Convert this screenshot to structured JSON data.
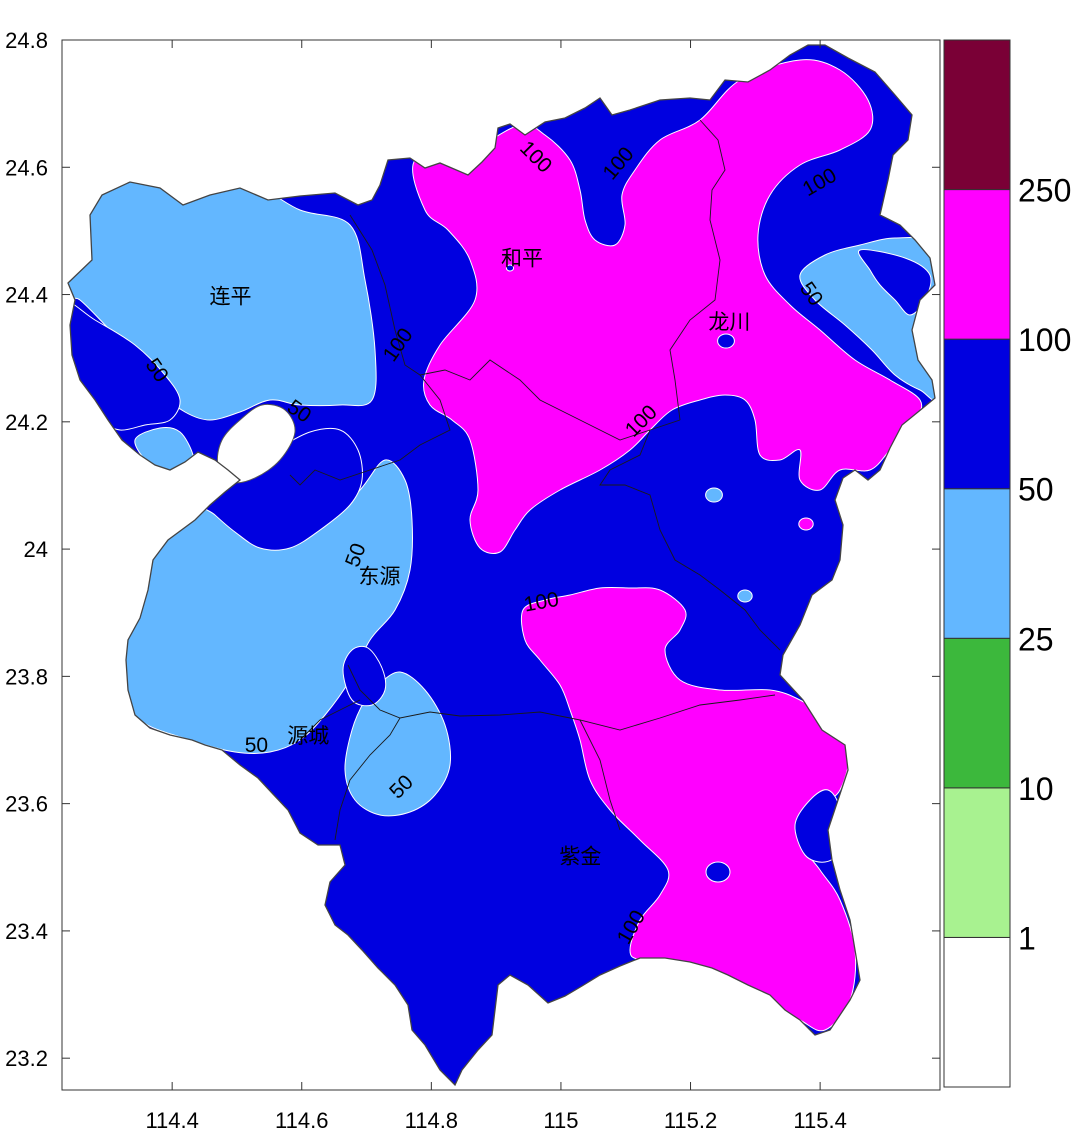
{
  "map": {
    "x_ticks": [
      {
        "value": 114.4,
        "label": "114.4"
      },
      {
        "value": 114.6,
        "label": "114.6"
      },
      {
        "value": 114.8,
        "label": "114.8"
      },
      {
        "value": 115.0,
        "label": "115"
      },
      {
        "value": 115.2,
        "label": "115.2"
      },
      {
        "value": 115.4,
        "label": "115.4"
      }
    ],
    "y_ticks": [
      {
        "value": 24.8,
        "label": "24.8"
      },
      {
        "value": 24.6,
        "label": "24.6"
      },
      {
        "value": 24.4,
        "label": "24.4"
      },
      {
        "value": 24.2,
        "label": "24.2"
      },
      {
        "value": 24.0,
        "label": "24"
      },
      {
        "value": 23.8,
        "label": "23.8"
      },
      {
        "value": 23.6,
        "label": "23.6"
      },
      {
        "value": 23.4,
        "label": "23.4"
      },
      {
        "value": 23.2,
        "label": "23.2"
      }
    ],
    "lon_range": [
      114.23,
      115.585
    ],
    "lat_range": [
      23.15,
      24.8
    ],
    "places": [
      {
        "name": "连平",
        "lon": 114.49,
        "lat": 24.395
      },
      {
        "name": "和平",
        "lon": 114.94,
        "lat": 24.455
      },
      {
        "name": "龙川",
        "lon": 115.26,
        "lat": 24.355
      },
      {
        "name": "东源",
        "lon": 114.72,
        "lat": 23.955
      },
      {
        "name": "源城",
        "lon": 114.61,
        "lat": 23.705
      },
      {
        "name": "紫金",
        "lon": 115.03,
        "lat": 23.515
      }
    ],
    "contour_labels": [
      {
        "text": "100",
        "lon": 114.96,
        "lat": 24.615,
        "angle": 45
      },
      {
        "text": "100",
        "lon": 115.09,
        "lat": 24.605,
        "angle": -50
      },
      {
        "text": "100",
        "lon": 115.4,
        "lat": 24.575,
        "angle": -30
      },
      {
        "text": "50",
        "lon": 115.385,
        "lat": 24.4,
        "angle": 55
      },
      {
        "text": "100",
        "lon": 114.75,
        "lat": 24.32,
        "angle": -55
      },
      {
        "text": "50",
        "lon": 114.375,
        "lat": 24.28,
        "angle": 55
      },
      {
        "text": "50",
        "lon": 114.595,
        "lat": 24.215,
        "angle": 35
      },
      {
        "text": "100",
        "lon": 115.125,
        "lat": 24.2,
        "angle": -45
      },
      {
        "text": "50",
        "lon": 114.685,
        "lat": 23.99,
        "angle": -70
      },
      {
        "text": "100",
        "lon": 114.97,
        "lat": 23.915,
        "angle": -10
      },
      {
        "text": "50",
        "lon": 114.53,
        "lat": 23.69,
        "angle": 0
      },
      {
        "text": "50",
        "lon": 114.755,
        "lat": 23.625,
        "angle": -45
      },
      {
        "text": "100",
        "lon": 115.11,
        "lat": 23.405,
        "angle": -60
      }
    ],
    "fill_colors": {
      "level_25_50": "#63b7ff",
      "level_50_100": "#0000e0",
      "level_100_250": "#ff00ff",
      "outside": "#ffffff"
    }
  },
  "legend": {
    "bins": [
      {
        "color": "#ffffff"
      },
      {
        "color": "#a8f290"
      },
      {
        "color": "#3cb83c"
      },
      {
        "color": "#63b7ff"
      },
      {
        "color": "#0000e0"
      },
      {
        "color": "#ff00ff"
      },
      {
        "color": "#7a0036"
      }
    ],
    "boundary_labels": [
      "1",
      "10",
      "25",
      "50",
      "100",
      "250"
    ]
  }
}
